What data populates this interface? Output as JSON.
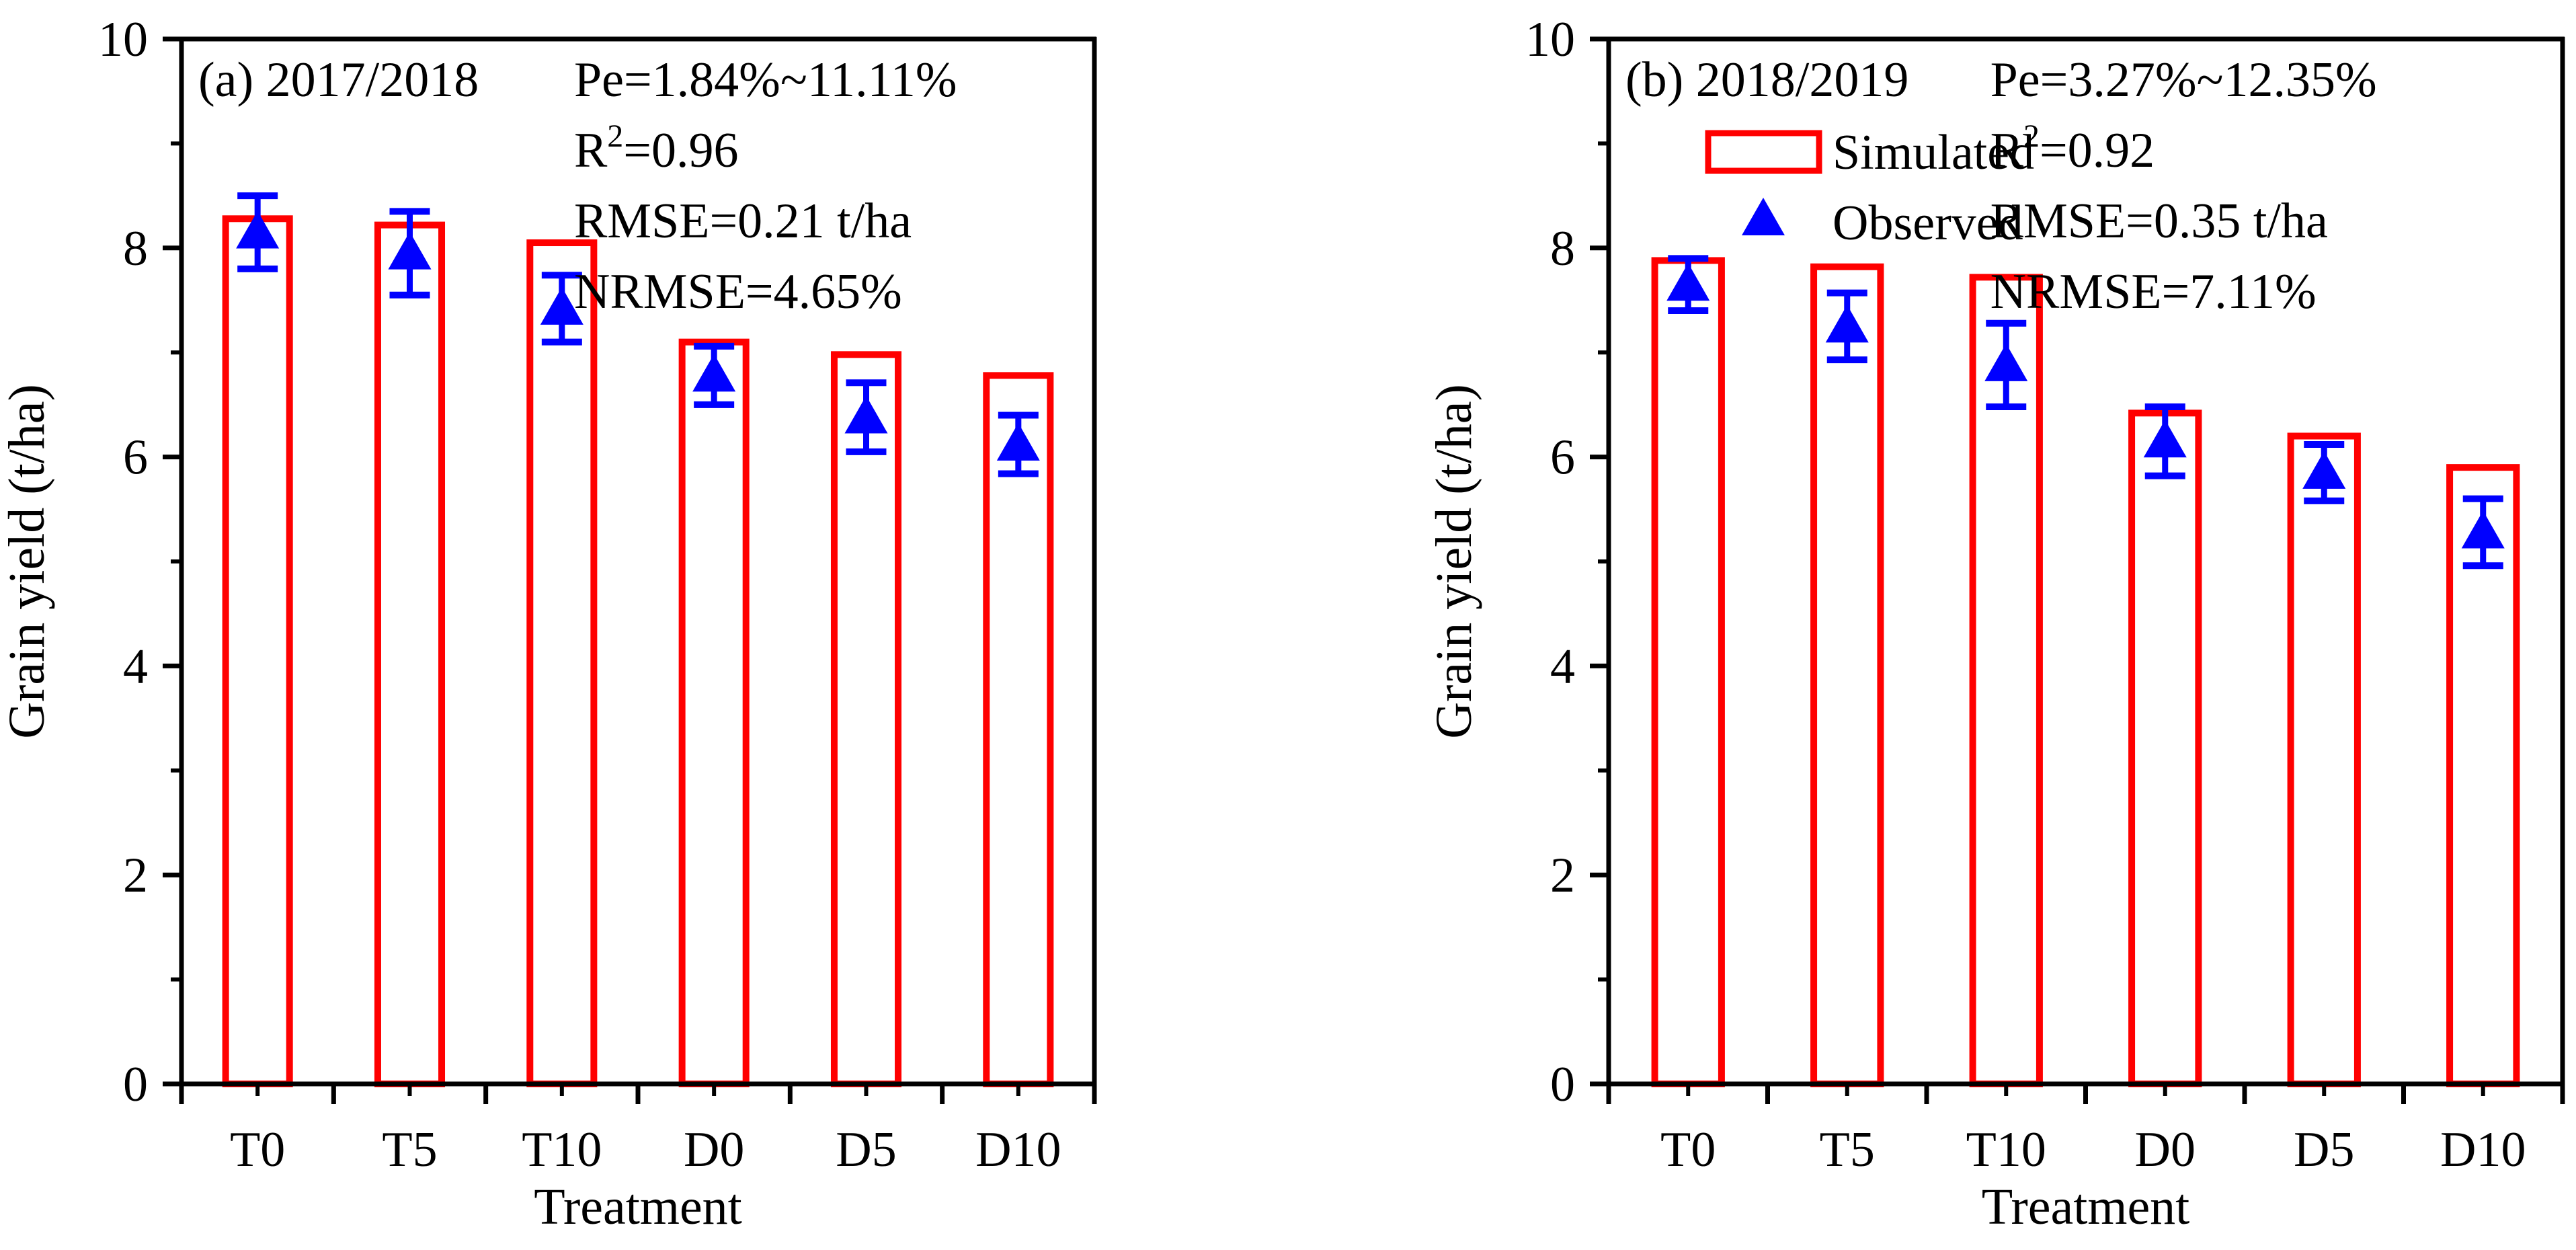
{
  "chart_data": [
    {
      "type": "bar",
      "panel_label": "(a) 2017/2018",
      "xlabel": "Treatment",
      "ylabel": "Grain yield (t/ha)",
      "ylim": [
        0,
        10
      ],
      "yticks": [
        "0",
        "2",
        "4",
        "6",
        "8",
        "10"
      ],
      "categories": [
        "T0",
        "T5",
        "T10",
        "D0",
        "D5",
        "D10"
      ],
      "series": [
        {
          "name": "Simulated",
          "kind": "bar-outline",
          "color": "#ff0000",
          "values": [
            8.28,
            8.22,
            8.05,
            7.1,
            6.98,
            6.78
          ]
        },
        {
          "name": "Observed",
          "kind": "triangle-errorbar",
          "color": "#0000ff",
          "values": [
            8.15,
            7.95,
            7.42,
            6.78,
            6.38,
            6.12
          ],
          "errors": [
            0.35,
            0.4,
            0.32,
            0.28,
            0.33,
            0.28
          ]
        }
      ],
      "stats": {
        "pe": "Pe=1.84%~11.11%",
        "r2_prefix": "R",
        "r2_sup": "2",
        "r2_value": "=0.96",
        "rmse": "RMSE=0.21 t/ha",
        "nrmse": "NRMSE=4.65%"
      },
      "show_legend": false
    },
    {
      "type": "bar",
      "panel_label": "(b) 2018/2019",
      "xlabel": "Treatment",
      "ylabel": "Grain yield (t/ha)",
      "ylim": [
        0,
        10
      ],
      "yticks": [
        "0",
        "2",
        "4",
        "6",
        "8",
        "10"
      ],
      "categories": [
        "T0",
        "T5",
        "T10",
        "D0",
        "D5",
        "D10"
      ],
      "series": [
        {
          "name": "Simulated",
          "kind": "bar-outline",
          "color": "#ff0000",
          "values": [
            7.88,
            7.82,
            7.72,
            6.42,
            6.2,
            5.9
          ]
        },
        {
          "name": "Observed",
          "kind": "triangle-errorbar",
          "color": "#0000ff",
          "values": [
            7.65,
            7.25,
            6.88,
            6.15,
            5.85,
            5.28
          ],
          "errors": [
            0.25,
            0.32,
            0.4,
            0.33,
            0.27,
            0.32
          ]
        }
      ],
      "stats": {
        "pe": "Pe=3.27%~12.35%",
        "r2_prefix": "R",
        "r2_sup": "2",
        "r2_value": "=0.92",
        "rmse": "RMSE=0.35 t/ha",
        "nrmse": "NRMSE=7.11%"
      },
      "show_legend": true,
      "legend": {
        "simulated": "Simulated",
        "observed": "Observed"
      }
    }
  ]
}
